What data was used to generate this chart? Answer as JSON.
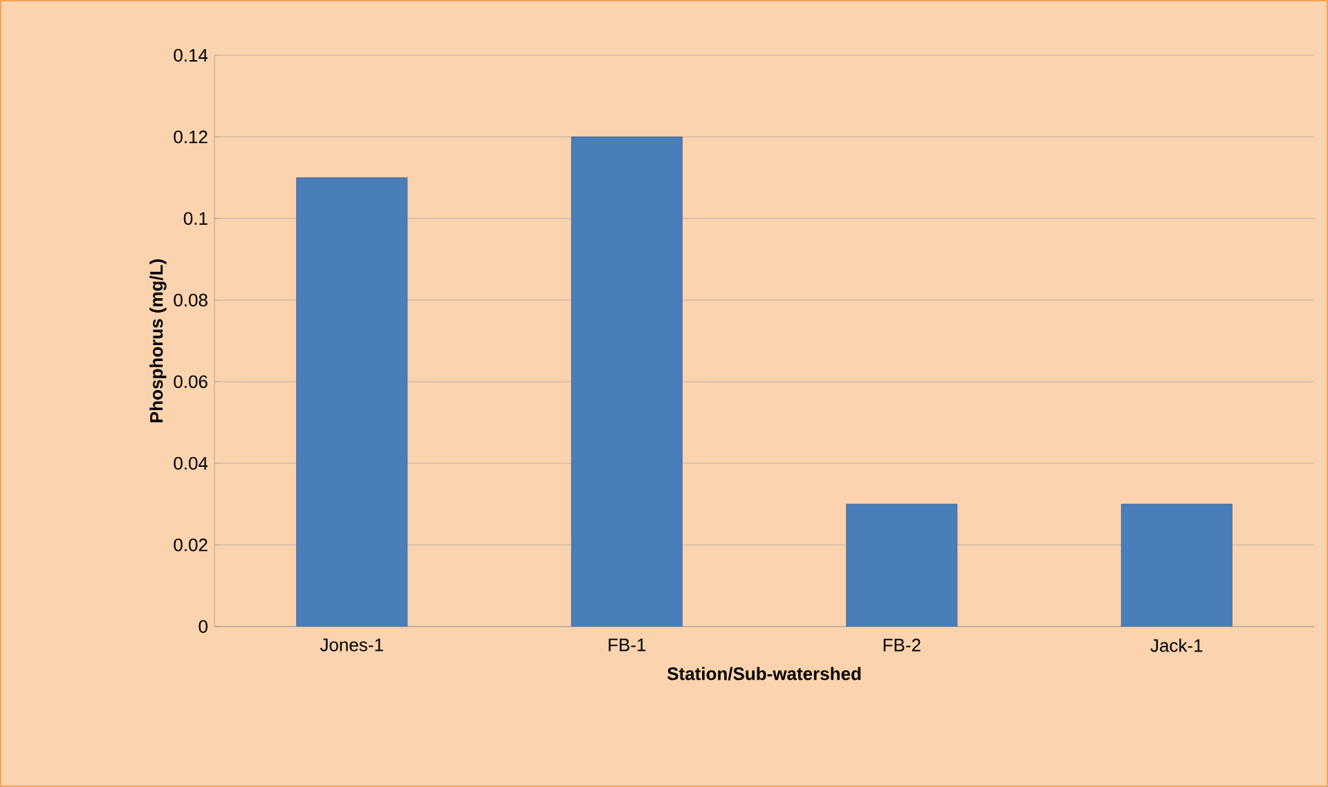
{
  "chart_data": {
    "type": "bar",
    "xlabel": "Station/Sub-watershed",
    "ylabel": "Phosphorus (mg/L)",
    "categories": [
      "Jones-1",
      "FB-1",
      "FB-2",
      "Jack-1"
    ],
    "values": [
      0.11,
      0.12,
      0.03,
      0.03
    ],
    "color": "#4a7ebb",
    "ylim": [
      0,
      0.14
    ],
    "yticks": [
      0,
      0.02,
      0.04,
      0.06,
      0.08,
      0.1,
      0.12,
      0.14
    ],
    "grid": "y"
  }
}
